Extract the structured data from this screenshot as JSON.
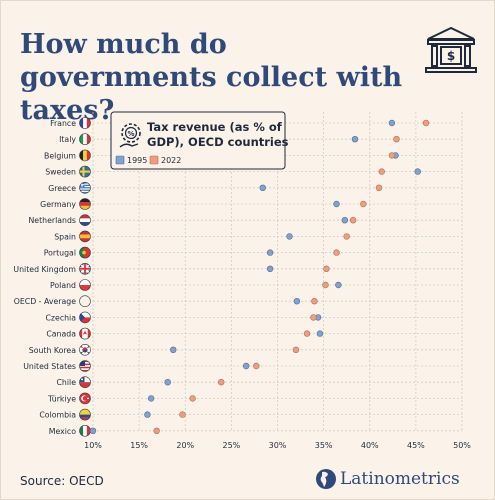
{
  "title": "How much do governments collect with taxes?",
  "source": "Source: OECD",
  "brand": "Latinometrics",
  "icons": {
    "header": "bank-icon",
    "legend": "money-gear-icon",
    "brand": "americas-map-icon"
  },
  "colors": {
    "series_1995": "#7fa3d0",
    "series_2022": "#ee9e80",
    "title": "#2f4a78",
    "background": "#fbf3ea"
  },
  "chart_data": {
    "type": "scatter",
    "title": "Tax revenue (as % of GDP), OECD countries",
    "xlabel": "",
    "ylabel": "",
    "xlim": [
      10,
      50
    ],
    "x_ticks": [
      "10%",
      "15%",
      "20%",
      "25%",
      "30%",
      "35%",
      "40%",
      "45%",
      "50%"
    ],
    "grid": true,
    "legend_position": "top-left",
    "categories": [
      "France",
      "Italy",
      "Belgium",
      "Sweden",
      "Greece",
      "Germany",
      "Netherlands",
      "Spain",
      "Portugal",
      "United Kingdom",
      "Poland",
      "OECD - Average",
      "Czechia",
      "Canada",
      "South Korea",
      "United States",
      "Chile",
      "Türkiye",
      "Colombia",
      "Mexico"
    ],
    "flag_icons": [
      "france-flag-icon",
      "italy-flag-icon",
      "belgium-flag-icon",
      "sweden-flag-icon",
      "greece-flag-icon",
      "germany-flag-icon",
      "netherlands-flag-icon",
      "spain-flag-icon",
      "portugal-flag-icon",
      "united-kingdom-flag-icon",
      "poland-flag-icon",
      "oecd-flag-icon",
      "czechia-flag-icon",
      "canada-flag-icon",
      "south-korea-flag-icon",
      "united-states-flag-icon",
      "chile-flag-icon",
      "turkiye-flag-icon",
      "colombia-flag-icon",
      "mexico-flag-icon"
    ],
    "series": [
      {
        "name": "1995",
        "values": [
          42.4,
          38.4,
          42.8,
          45.2,
          28.4,
          36.4,
          37.3,
          31.3,
          29.2,
          29.2,
          36.6,
          32.1,
          34.4,
          34.6,
          18.7,
          26.6,
          18.1,
          16.3,
          15.9,
          10.0
        ]
      },
      {
        "name": "2022",
        "values": [
          46.1,
          42.9,
          42.4,
          41.3,
          41.0,
          39.3,
          38.2,
          37.5,
          36.4,
          35.3,
          35.2,
          34.0,
          33.9,
          33.2,
          32.0,
          27.7,
          23.9,
          20.8,
          19.7,
          16.9
        ]
      }
    ]
  }
}
